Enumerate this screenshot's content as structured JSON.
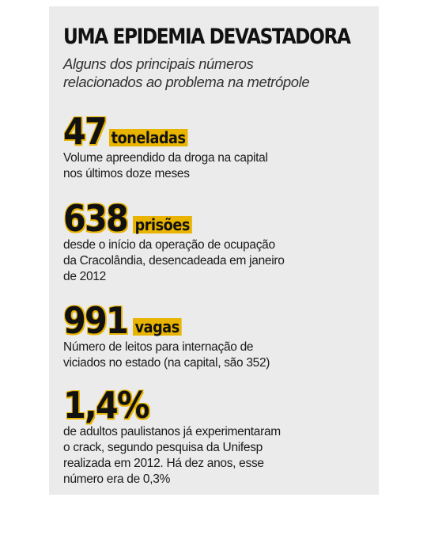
{
  "title": "UMA EPIDEMIA DEVASTADORA",
  "subtitle": {
    "line1": "Alguns dos principais números",
    "line2": "relacionados ao problema na metrópole"
  },
  "stats": [
    {
      "number": "47",
      "unit": "toneladas",
      "lines": [
        "Volume apreendido da droga na capital",
        "nos últimos doze meses"
      ]
    },
    {
      "number": "638",
      "unit": "prisões",
      "lines": [
        "desde o início da operação de ocupação",
        "da Cracolândia, desencadeada em janeiro",
        "de 2012"
      ]
    },
    {
      "number": "991",
      "unit": "vagas",
      "lines": [
        "Número de leitos para internação de",
        "viciados no estado (na capital, são 352)"
      ]
    },
    {
      "number": "1,4%",
      "unit": "",
      "lines": [
        "de adultos paulistanos já experimentaram",
        "o crack, segundo pesquisa da Unifesp",
        "realizada em 2012. Há dez anos, esse",
        "número era de 0,3%"
      ]
    }
  ],
  "colors": {
    "accent": "#e8b400",
    "panel_background": "#ebebeb",
    "text": "#111111"
  }
}
